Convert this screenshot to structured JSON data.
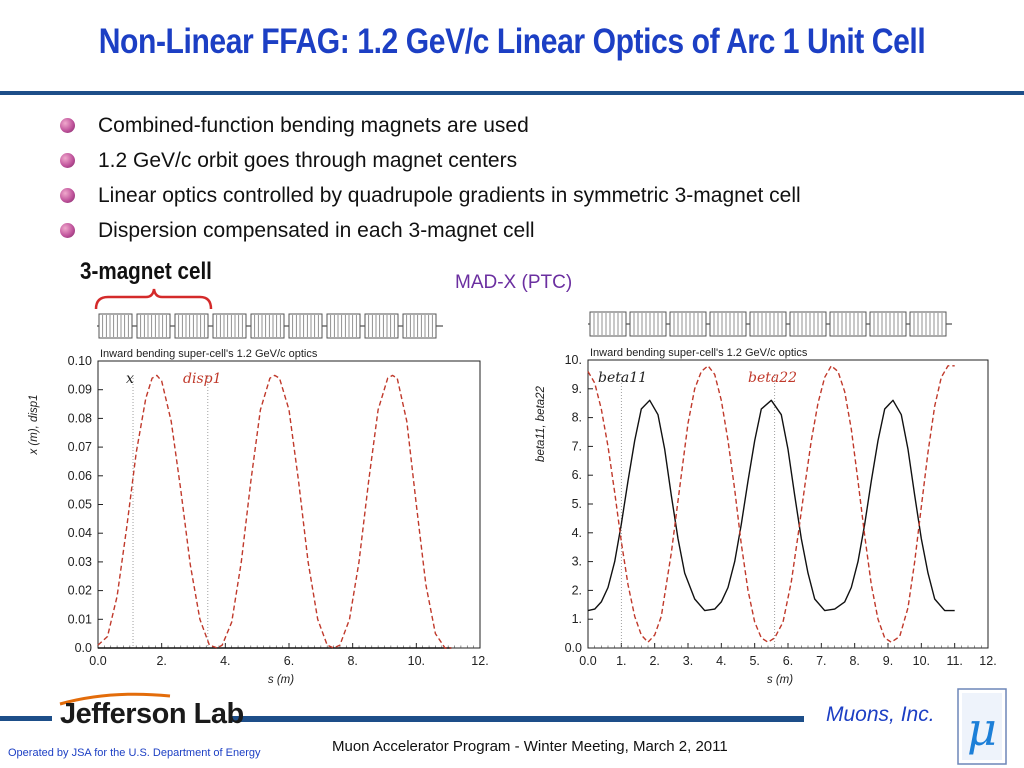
{
  "slide": {
    "title": "Non-Linear FFAG: 1.2 GeV/c Linear Optics of Arc 1 Unit Cell",
    "bullets": [
      "Combined-function bending magnets are used",
      "1.2 GeV/c orbit goes through magnet centers",
      "Linear optics controlled by quadrupole gradients in symmetric 3-magnet cell",
      "Dispersion compensated in each 3-magnet cell"
    ],
    "magnet_cell_label": "3-magnet cell",
    "madx_label": "MAD-X (PTC)",
    "footer_left": "Operated by JSA for the U.S. Department of Energy",
    "footer_center": "Muon Accelerator Program - Winter Meeting, March 2, 2011",
    "footer_right": "Muons, Inc.",
    "logo_text": "Jefferson Lab",
    "mu_logo": "μ"
  },
  "colors": {
    "title": "#1c3fc4",
    "rule": "#1d4e89",
    "bullet": "#c0549c",
    "madx": "#6b2fa0",
    "curve_black": "#111111",
    "curve_red": "#c0392b",
    "bracket": "#d42a2a"
  },
  "chart_data": [
    {
      "type": "line",
      "title": "Inward bending super-cell's 1.2 GeV/c optics",
      "xlabel": "s (m)",
      "ylabel": "x (m), disp1",
      "xlim": [
        0,
        12
      ],
      "ylim": [
        0,
        0.1
      ],
      "x_ticks": [
        "0.0",
        "2.",
        "4.",
        "6.",
        "8.",
        "10.",
        "12."
      ],
      "y_ticks": [
        "0.0",
        "0.01",
        "0.02",
        "0.03",
        "0.04",
        "0.05",
        "0.06",
        "0.07",
        "0.08",
        "0.09",
        "0.10"
      ],
      "annotations": [
        "x",
        "disp1"
      ],
      "series": [
        {
          "name": "x",
          "color": "#111111",
          "style": "solid",
          "x": [
            0.0,
            11.1
          ],
          "y": [
            0.0,
            0.0
          ]
        },
        {
          "name": "disp1",
          "color": "#c0392b",
          "style": "dashed",
          "x": [
            0.0,
            0.3,
            0.6,
            0.9,
            1.2,
            1.5,
            1.7,
            1.85,
            2.0,
            2.3,
            2.6,
            2.9,
            3.2,
            3.5,
            3.75,
            3.9,
            4.2,
            4.5,
            4.8,
            5.1,
            5.4,
            5.55,
            5.7,
            6.0,
            6.3,
            6.6,
            6.9,
            7.2,
            7.4,
            7.6,
            7.9,
            8.2,
            8.5,
            8.8,
            9.1,
            9.25,
            9.4,
            9.7,
            10.0,
            10.3,
            10.6,
            10.9,
            11.1
          ],
          "y": [
            0.001,
            0.004,
            0.018,
            0.042,
            0.068,
            0.087,
            0.094,
            0.095,
            0.093,
            0.079,
            0.055,
            0.029,
            0.01,
            0.001,
            0.0,
            0.001,
            0.009,
            0.03,
            0.058,
            0.083,
            0.094,
            0.095,
            0.094,
            0.083,
            0.058,
            0.03,
            0.01,
            0.001,
            0.0,
            0.001,
            0.01,
            0.03,
            0.058,
            0.083,
            0.094,
            0.095,
            0.094,
            0.079,
            0.05,
            0.022,
            0.005,
            0.0,
            0.0
          ]
        }
      ]
    },
    {
      "type": "line",
      "title": "Inward bending super-cell's 1.2 GeV/c optics",
      "xlabel": "s (m)",
      "ylabel": "beta11, beta22",
      "xlim": [
        0,
        12
      ],
      "ylim": [
        0,
        10
      ],
      "x_ticks": [
        "0.0",
        "1.",
        "2.",
        "3.",
        "4.",
        "5.",
        "6.",
        "7.",
        "8.",
        "9.",
        "10.",
        "11.",
        "12."
      ],
      "y_ticks": [
        "0.0",
        "1.",
        "2.",
        "3.",
        "4.",
        "5.",
        "6.",
        "7.",
        "8.",
        "9.",
        "10."
      ],
      "annotations": [
        "beta11",
        "beta22"
      ],
      "series": [
        {
          "name": "beta11",
          "color": "#111111",
          "style": "solid",
          "x": [
            0.0,
            0.2,
            0.4,
            0.6,
            0.8,
            1.0,
            1.2,
            1.4,
            1.6,
            1.85,
            2.1,
            2.3,
            2.5,
            2.7,
            2.9,
            3.2,
            3.5,
            3.8,
            4.0,
            4.2,
            4.4,
            4.6,
            4.8,
            5.0,
            5.2,
            5.5,
            5.8,
            6.0,
            6.2,
            6.4,
            6.6,
            6.8,
            7.1,
            7.4,
            7.7,
            7.9,
            8.1,
            8.3,
            8.5,
            8.7,
            8.9,
            9.15,
            9.4,
            9.6,
            9.8,
            10.0,
            10.2,
            10.4,
            10.7,
            11.0
          ],
          "y": [
            1.3,
            1.35,
            1.6,
            2.1,
            3.0,
            4.3,
            5.8,
            7.2,
            8.3,
            8.6,
            8.1,
            6.9,
            5.3,
            3.8,
            2.6,
            1.7,
            1.3,
            1.35,
            1.6,
            2.1,
            3.0,
            4.3,
            5.8,
            7.2,
            8.3,
            8.6,
            8.1,
            6.9,
            5.3,
            3.8,
            2.6,
            1.7,
            1.3,
            1.35,
            1.6,
            2.1,
            3.0,
            4.3,
            5.8,
            7.2,
            8.3,
            8.6,
            8.1,
            6.9,
            5.3,
            3.8,
            2.6,
            1.7,
            1.3,
            1.3
          ]
        },
        {
          "name": "beta22",
          "color": "#c0392b",
          "style": "dashed",
          "x": [
            0.0,
            0.2,
            0.4,
            0.6,
            0.8,
            1.0,
            1.2,
            1.4,
            1.6,
            1.8,
            2.0,
            2.2,
            2.5,
            2.8,
            3.0,
            3.2,
            3.4,
            3.6,
            3.8,
            4.0,
            4.2,
            4.4,
            4.6,
            4.8,
            5.0,
            5.2,
            5.4,
            5.6,
            5.85,
            6.1,
            6.3,
            6.5,
            6.7,
            6.9,
            7.1,
            7.3,
            7.5,
            7.7,
            7.9,
            8.1,
            8.3,
            8.5,
            8.7,
            8.9,
            9.1,
            9.35,
            9.6,
            9.8,
            10.0,
            10.2,
            10.4,
            10.6,
            10.8,
            11.0
          ],
          "y": [
            9.6,
            9.2,
            8.3,
            7.0,
            5.4,
            3.7,
            2.2,
            1.1,
            0.45,
            0.2,
            0.45,
            1.1,
            3.3,
            6.0,
            7.8,
            9.0,
            9.6,
            9.8,
            9.5,
            8.6,
            7.2,
            5.5,
            3.6,
            2.0,
            0.9,
            0.35,
            0.2,
            0.35,
            0.9,
            2.3,
            3.9,
            5.6,
            7.2,
            8.5,
            9.4,
            9.8,
            9.6,
            8.9,
            7.6,
            5.8,
            3.9,
            2.2,
            1.0,
            0.35,
            0.2,
            0.4,
            1.4,
            3.0,
            4.9,
            6.8,
            8.4,
            9.4,
            9.8,
            9.8
          ]
        }
      ]
    }
  ]
}
